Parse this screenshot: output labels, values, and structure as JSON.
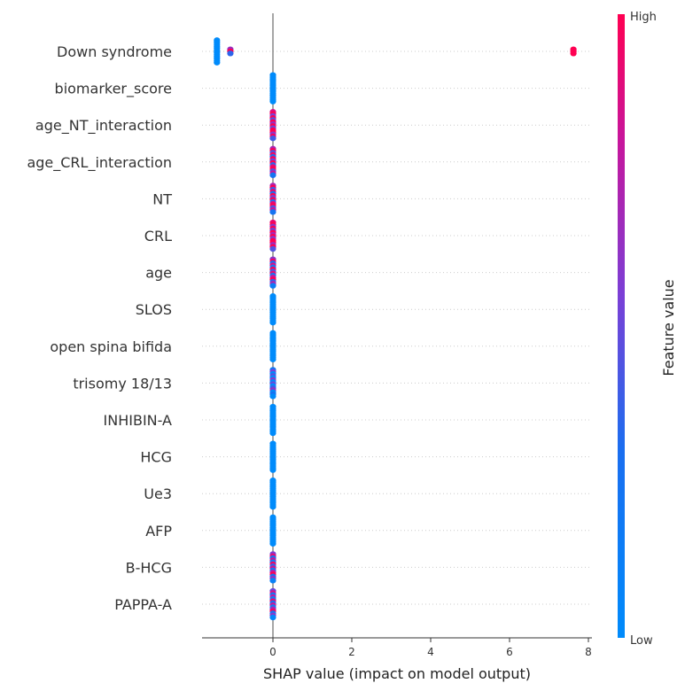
{
  "chart_data": {
    "type": "scatter",
    "subtype": "shap-beeswarm",
    "xlabel": "SHAP value (impact on model output)",
    "xticks": [
      0,
      2,
      4,
      6,
      8
    ],
    "xlim": [
      -1.8,
      8.0
    ],
    "colorbar": {
      "title": "Feature value",
      "high_label": "High",
      "low_label": "Low",
      "high_color": "#ff0052",
      "low_color": "#008bfb"
    },
    "grid": "dotted horizontal per feature",
    "features": [
      {
        "name": "Down syndrome",
        "points": [
          {
            "x": -1.42,
            "v": 0.0,
            "n": 12
          },
          {
            "x": -1.08,
            "v": 0.65,
            "n": 3
          },
          {
            "x": 7.62,
            "v": 1.0,
            "n": 3
          }
        ]
      },
      {
        "name": "biomarker_score",
        "points": [
          {
            "x": 0.0,
            "v": 0.0,
            "n": 14
          }
        ]
      },
      {
        "name": "age_NT_interaction",
        "points": [
          {
            "x": 0.0,
            "v": 0.85,
            "n": 14
          }
        ]
      },
      {
        "name": "age_CRL_interaction",
        "points": [
          {
            "x": 0.0,
            "v": 0.7,
            "n": 14
          }
        ]
      },
      {
        "name": "NT",
        "points": [
          {
            "x": 0.0,
            "v": 0.7,
            "n": 14
          }
        ]
      },
      {
        "name": "CRL",
        "points": [
          {
            "x": 0.0,
            "v": 0.9,
            "n": 14
          }
        ]
      },
      {
        "name": "age",
        "points": [
          {
            "x": 0.0,
            "v": 0.6,
            "n": 14
          }
        ]
      },
      {
        "name": "SLOS",
        "points": [
          {
            "x": 0.0,
            "v": 0.0,
            "n": 14
          }
        ]
      },
      {
        "name": "open spina bifida",
        "points": [
          {
            "x": 0.0,
            "v": 0.0,
            "n": 14
          }
        ]
      },
      {
        "name": "trisomy 18/13",
        "points": [
          {
            "x": 0.0,
            "v": 0.2,
            "n": 14
          }
        ]
      },
      {
        "name": "INHIBIN-A",
        "points": [
          {
            "x": 0.0,
            "v": 0.0,
            "n": 14
          }
        ]
      },
      {
        "name": "HCG",
        "points": [
          {
            "x": 0.0,
            "v": 0.0,
            "n": 14
          }
        ]
      },
      {
        "name": "Ue3",
        "points": [
          {
            "x": 0.0,
            "v": 0.0,
            "n": 14
          }
        ]
      },
      {
        "name": "AFP",
        "points": [
          {
            "x": 0.0,
            "v": 0.0,
            "n": 14
          }
        ]
      },
      {
        "name": "B-HCG",
        "points": [
          {
            "x": 0.0,
            "v": 0.55,
            "n": 14
          }
        ]
      },
      {
        "name": "PAPPA-A",
        "points": [
          {
            "x": 0.0,
            "v": 0.5,
            "n": 14
          }
        ]
      }
    ]
  }
}
